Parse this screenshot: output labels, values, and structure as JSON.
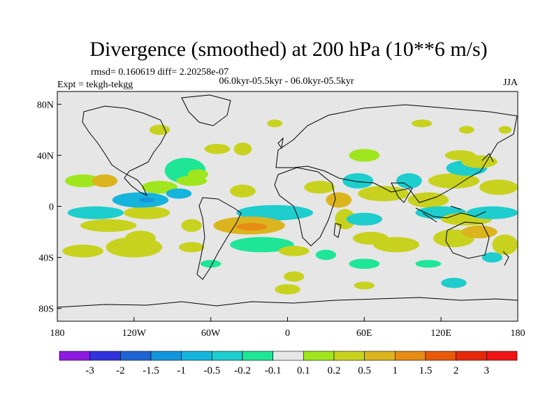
{
  "chart_data": {
    "type": "heatmap",
    "title": "Divergence (smoothed) at 200 hPa (10**6 m/s)",
    "stats_text": "rmsd= 0.160619 diff= 2.20258e-07",
    "expt_text": "Expt = tekgh-tekgg",
    "period_text": "06.0kyr-05.5kyr - 06.0kyr-05.5kyr",
    "season_text": "JJA",
    "xlim": [
      -180,
      180
    ],
    "ylim": [
      -90,
      90
    ],
    "x_ticks": [
      {
        "value": -180,
        "label": "180"
      },
      {
        "value": -120,
        "label": "120W"
      },
      {
        "value": -60,
        "label": "60W"
      },
      {
        "value": 0,
        "label": "0"
      },
      {
        "value": 60,
        "label": "60E"
      },
      {
        "value": 120,
        "label": "120E"
      },
      {
        "value": 180,
        "label": "180"
      }
    ],
    "y_ticks": [
      {
        "value": 80,
        "label": "80N"
      },
      {
        "value": 40,
        "label": "40N"
      },
      {
        "value": 0,
        "label": "0"
      },
      {
        "value": -40,
        "label": "40S"
      },
      {
        "value": -80,
        "label": "80S"
      }
    ],
    "colorbar": {
      "levels": [
        "-3",
        "-2",
        "-1.5",
        "-1",
        "-0.5",
        "-0.2",
        "-0.1",
        "0.1",
        "0.2",
        "0.5",
        "1",
        "1.5",
        "2",
        "3"
      ],
      "colors": [
        "#8c1ae0",
        "#3232dc",
        "#1e64d2",
        "#1496dc",
        "#14b4dc",
        "#1ecdcd",
        "#1ee696",
        "#e6e6e6",
        "#a0e61e",
        "#c8d21e",
        "#dcb41e",
        "#e68c14",
        "#e65a0a",
        "#e6280a",
        "#f01414"
      ]
    },
    "fields": [
      {
        "lon": -160,
        "lat": 20,
        "rx": 14,
        "ry": 5,
        "level": 8
      },
      {
        "lon": -143,
        "lat": 20,
        "rx": 10,
        "ry": 5,
        "level": 10
      },
      {
        "lon": -150,
        "lat": -5,
        "rx": 22,
        "ry": 5,
        "level": 5
      },
      {
        "lon": -110,
        "lat": -5,
        "rx": 18,
        "ry": 5,
        "level": 9
      },
      {
        "lon": -115,
        "lat": 5,
        "rx": 22,
        "ry": 6,
        "level": 4
      },
      {
        "lon": -110,
        "lat": 5,
        "rx": 6,
        "ry": 2,
        "level": 3
      },
      {
        "lon": -140,
        "lat": -15,
        "rx": 22,
        "ry": 5,
        "level": 9
      },
      {
        "lon": -120,
        "lat": -32,
        "rx": 22,
        "ry": 8,
        "level": 9
      },
      {
        "lon": -160,
        "lat": -35,
        "rx": 16,
        "ry": 5,
        "level": 9
      },
      {
        "lon": -80,
        "lat": 28,
        "rx": 16,
        "ry": 10,
        "level": 6
      },
      {
        "lon": -70,
        "lat": 25,
        "rx": 8,
        "ry": 4,
        "level": 8
      },
      {
        "lon": -55,
        "lat": 45,
        "rx": 10,
        "ry": 4,
        "level": 9
      },
      {
        "lon": -100,
        "lat": 15,
        "rx": 14,
        "ry": 5,
        "level": 8
      },
      {
        "lon": -85,
        "lat": 10,
        "rx": 10,
        "ry": 4,
        "level": 4
      },
      {
        "lon": -115,
        "lat": -25,
        "rx": 12,
        "ry": 6,
        "level": 9
      },
      {
        "lon": -75,
        "lat": 20,
        "rx": 12,
        "ry": 4,
        "level": 8
      },
      {
        "lon": -75,
        "lat": -15,
        "rx": 8,
        "ry": 5,
        "level": 9
      },
      {
        "lon": -75,
        "lat": -32,
        "rx": 10,
        "ry": 4,
        "level": 9
      },
      {
        "lon": -10,
        "lat": -5,
        "rx": 30,
        "ry": 6,
        "level": 5
      },
      {
        "lon": -30,
        "lat": -15,
        "rx": 28,
        "ry": 7,
        "level": 10
      },
      {
        "lon": -28,
        "lat": -16,
        "rx": 12,
        "ry": 3,
        "level": 11
      },
      {
        "lon": -20,
        "lat": -30,
        "rx": 25,
        "ry": 6,
        "level": 6
      },
      {
        "lon": -60,
        "lat": -45,
        "rx": 8,
        "ry": 3,
        "level": 6
      },
      {
        "lon": -35,
        "lat": 12,
        "rx": 10,
        "ry": 5,
        "level": 9
      },
      {
        "lon": -35,
        "lat": 45,
        "rx": 7,
        "ry": 5,
        "level": 9
      },
      {
        "lon": 5,
        "lat": -35,
        "rx": 12,
        "ry": 4,
        "level": 9
      },
      {
        "lon": 5,
        "lat": -55,
        "rx": 8,
        "ry": 4,
        "level": 9
      },
      {
        "lon": 30,
        "lat": -38,
        "rx": 8,
        "ry": 4,
        "level": 6
      },
      {
        "lon": 60,
        "lat": 40,
        "rx": 12,
        "ry": 5,
        "level": 8
      },
      {
        "lon": 25,
        "lat": 15,
        "rx": 12,
        "ry": 5,
        "level": 9
      },
      {
        "lon": 40,
        "lat": 5,
        "rx": 10,
        "ry": 6,
        "level": 10
      },
      {
        "lon": 45,
        "lat": -10,
        "rx": 8,
        "ry": 8,
        "level": 9
      },
      {
        "lon": 60,
        "lat": -10,
        "rx": 14,
        "ry": 5,
        "level": 5
      },
      {
        "lon": 65,
        "lat": -25,
        "rx": 14,
        "ry": 5,
        "level": 9
      },
      {
        "lon": 85,
        "lat": -30,
        "rx": 18,
        "ry": 6,
        "level": 9
      },
      {
        "lon": 60,
        "lat": -45,
        "rx": 12,
        "ry": 4,
        "level": 6
      },
      {
        "lon": 55,
        "lat": 20,
        "rx": 12,
        "ry": 6,
        "level": 5
      },
      {
        "lon": 75,
        "lat": 10,
        "rx": 20,
        "ry": 6,
        "level": 9
      },
      {
        "lon": 95,
        "lat": 20,
        "rx": 10,
        "ry": 6,
        "level": 5
      },
      {
        "lon": 110,
        "lat": 5,
        "rx": 16,
        "ry": 6,
        "level": 9
      },
      {
        "lon": 130,
        "lat": 20,
        "rx": 20,
        "ry": 6,
        "level": 9
      },
      {
        "lon": 140,
        "lat": 30,
        "rx": 16,
        "ry": 6,
        "level": 5
      },
      {
        "lon": 150,
        "lat": 35,
        "rx": 14,
        "ry": 5,
        "level": 9
      },
      {
        "lon": 135,
        "lat": 40,
        "rx": 12,
        "ry": 4,
        "level": 9
      },
      {
        "lon": 120,
        "lat": -5,
        "rx": 20,
        "ry": 5,
        "level": 5
      },
      {
        "lon": 140,
        "lat": -10,
        "rx": 20,
        "ry": 5,
        "level": 9
      },
      {
        "lon": 160,
        "lat": -5,
        "rx": 20,
        "ry": 5,
        "level": 5
      },
      {
        "lon": 130,
        "lat": -25,
        "rx": 16,
        "ry": 7,
        "level": 9
      },
      {
        "lon": 150,
        "lat": -20,
        "rx": 14,
        "ry": 5,
        "level": 10
      },
      {
        "lon": 170,
        "lat": -30,
        "rx": 10,
        "ry": 8,
        "level": 9
      },
      {
        "lon": 165,
        "lat": 15,
        "rx": 15,
        "ry": 6,
        "level": 9
      },
      {
        "lon": 160,
        "lat": -40,
        "rx": 8,
        "ry": 4,
        "level": 5
      },
      {
        "lon": -100,
        "lat": 60,
        "rx": 8,
        "ry": 4,
        "level": 9
      },
      {
        "lon": 105,
        "lat": 65,
        "rx": 8,
        "ry": 3,
        "level": 9
      },
      {
        "lon": 140,
        "lat": 60,
        "rx": 6,
        "ry": 3,
        "level": 9
      },
      {
        "lon": 170,
        "lat": 60,
        "rx": 5,
        "ry": 3,
        "level": 9
      },
      {
        "lon": -10,
        "lat": 65,
        "rx": 6,
        "ry": 3,
        "level": 9
      },
      {
        "lon": 0,
        "lat": -65,
        "rx": 10,
        "ry": 4,
        "level": 9
      },
      {
        "lon": 60,
        "lat": -62,
        "rx": 8,
        "ry": 3,
        "level": 9
      },
      {
        "lon": 130,
        "lat": -60,
        "rx": 10,
        "ry": 4,
        "level": 5
      },
      {
        "lon": 110,
        "lat": -45,
        "rx": 10,
        "ry": 3,
        "level": 6
      }
    ]
  }
}
